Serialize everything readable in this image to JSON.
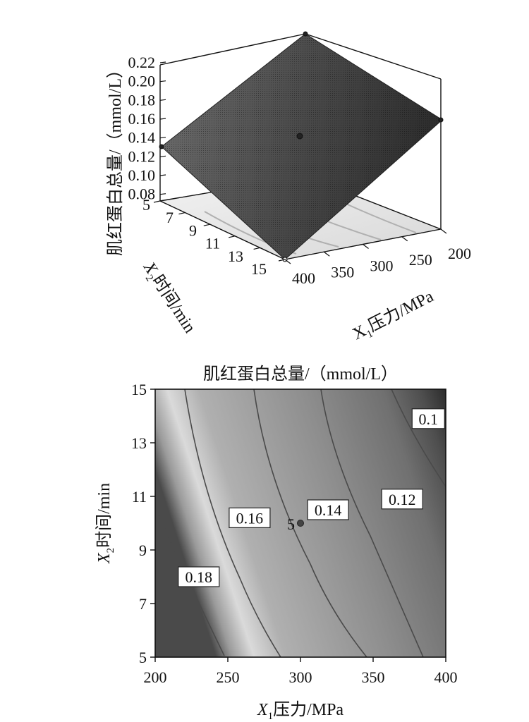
{
  "colors": {
    "surface_dark": "#2b2b2b",
    "surface_light": "#8a8a8a",
    "contour_dark": "#3a3a3a",
    "contour_light": "#e6e6e6",
    "contour_line": "#555555",
    "point": "#333333"
  },
  "chart_data": [
    {
      "type": "surface",
      "zlabel": "肌红蛋白总量/（mmol/L）",
      "ylabel_prefix": "X",
      "ylabel_sub": "2",
      "ylabel_text": "时间/min",
      "xlabel_prefix": "X",
      "xlabel_sub": "1",
      "xlabel_text": "压力/MPa",
      "z_ticks": [
        "0.08",
        "0.10",
        "0.12",
        "0.14",
        "0.16",
        "0.18",
        "0.20",
        "0.22"
      ],
      "y_ticks": [
        "5",
        "7",
        "9",
        "11",
        "13",
        "15"
      ],
      "x_ticks": [
        "200",
        "250",
        "300",
        "350",
        "400"
      ],
      "xlim": [
        200,
        400
      ],
      "ylim": [
        5,
        15
      ],
      "zlim": [
        0.07,
        0.22
      ],
      "corner_points": [
        {
          "x": 200,
          "y": 5,
          "z": 0.216
        },
        {
          "x": 400,
          "y": 5,
          "z": 0.157
        },
        {
          "x": 200,
          "y": 15,
          "z": 0.127
        },
        {
          "x": 400,
          "y": 15,
          "z": 0.075
        },
        {
          "x": 300,
          "y": 10,
          "z": 0.14
        }
      ]
    },
    {
      "type": "contour",
      "title": "肌红蛋白总量/（mmol/L）",
      "xlabel_prefix": "X",
      "xlabel_sub": "1",
      "xlabel_text": "压力/MPa",
      "ylabel_prefix": "X",
      "ylabel_sub": "2",
      "ylabel_text": "时间/min",
      "x_ticks": [
        "200",
        "250",
        "300",
        "350",
        "400"
      ],
      "y_ticks": [
        "5",
        "7",
        "9",
        "11",
        "13",
        "15"
      ],
      "xlim": [
        200,
        400
      ],
      "ylim": [
        5,
        15
      ],
      "contour_levels": [
        {
          "label": "0.18",
          "x": 230,
          "y": 8.0
        },
        {
          "label": "0.16",
          "x": 265,
          "y": 10.2
        },
        {
          "label": "0.14",
          "x": 319,
          "y": 10.5
        },
        {
          "label": "0.12",
          "x": 370,
          "y": 10.9
        },
        {
          "label": "0.1",
          "x": 388,
          "y": 13.9
        }
      ],
      "center_point": {
        "label": "5",
        "x": 300,
        "y": 10
      }
    }
  ]
}
